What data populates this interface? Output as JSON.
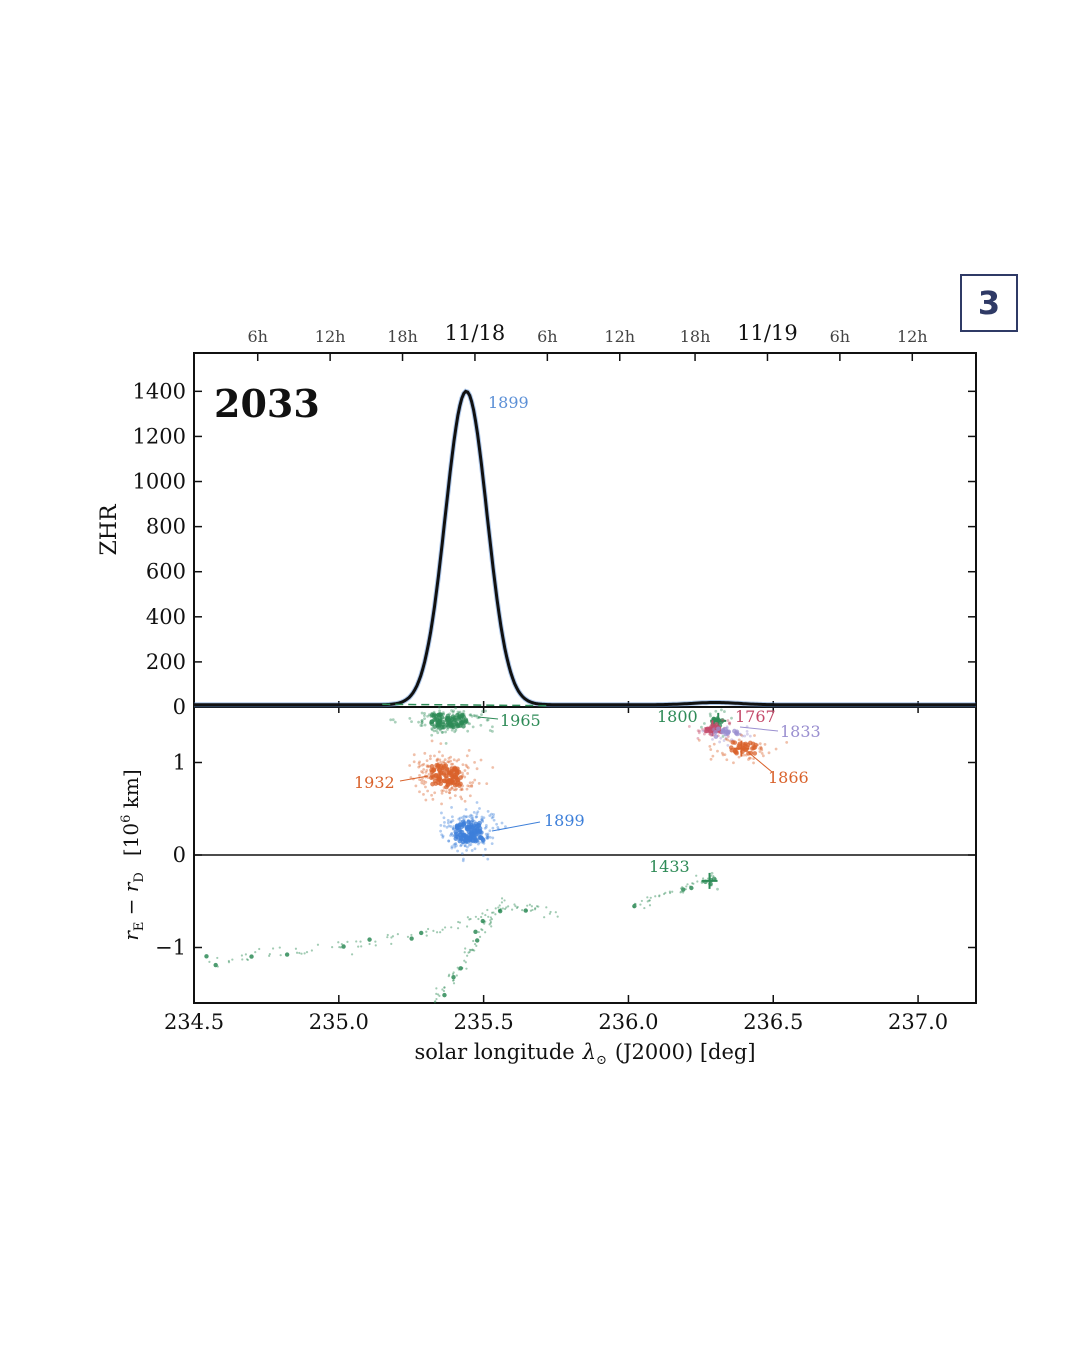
{
  "page_badge": "3",
  "chart_data": [
    {
      "type": "line",
      "panel": "top",
      "title": "2033",
      "ylabel": "ZHR",
      "ylim": [
        0,
        1400
      ],
      "yticks": [
        "0",
        "200",
        "400",
        "600",
        "800",
        "1000",
        "1200",
        "1400"
      ],
      "xlim": [
        234.5,
        237.2
      ],
      "top_axis_ticks": [
        {
          "label": "6h",
          "x": 234.72
        },
        {
          "label": "12h",
          "x": 234.97
        },
        {
          "label": "18h",
          "x": 235.22
        },
        {
          "label": "11/18",
          "x": 235.47,
          "major": true
        },
        {
          "label": "6h",
          "x": 235.72
        },
        {
          "label": "12h",
          "x": 235.97
        },
        {
          "label": "18h",
          "x": 236.23
        },
        {
          "label": "11/19",
          "x": 236.48,
          "major": true
        },
        {
          "label": "6h",
          "x": 236.73
        },
        {
          "label": "12h",
          "x": 236.98
        }
      ],
      "series": [
        {
          "color": "#111111",
          "peak": {
            "x": 235.44,
            "y": 1400,
            "label": "1899",
            "label_color": "#5b8fd6"
          },
          "background_level": 10,
          "secondary_bump": {
            "x": 236.3,
            "y": 10
          },
          "peak_width_sigma": 0.072
        }
      ]
    },
    {
      "type": "scatter",
      "panel": "bottom",
      "xlabel": "solar longitude λ⊙ (J2000) [deg]",
      "ylabel": "r_E − r_D [10^6 km]",
      "xlim": [
        234.5,
        237.2
      ],
      "ylim": [
        -1.6,
        1.6
      ],
      "xticks": [
        "234.5",
        "235.0",
        "235.5",
        "236.0",
        "236.5",
        "237.0"
      ],
      "yticks": [
        "−1",
        "0",
        "1"
      ],
      "clusters": [
        {
          "label": "1965",
          "color": "#2e8b57",
          "x": 235.38,
          "y": 1.45,
          "sx": 0.06,
          "sy": 0.07,
          "n": 170
        },
        {
          "label": "1932",
          "color": "#d9622b",
          "x": 235.37,
          "y": 0.85,
          "sx": 0.055,
          "sy": 0.12,
          "n": 220
        },
        {
          "label": "1899",
          "color": "#3d7fd9",
          "x": 235.45,
          "y": 0.25,
          "sx": 0.05,
          "sy": 0.11,
          "n": 230
        },
        {
          "label": "1800",
          "color": "#2e8b57",
          "x": 236.31,
          "y": 1.45,
          "sx": 0.02,
          "sy": 0.06,
          "n": 25
        },
        {
          "label": "1767",
          "color": "#c44a6a",
          "x": 236.29,
          "y": 1.37,
          "sx": 0.03,
          "sy": 0.05,
          "n": 40
        },
        {
          "label": "1833",
          "color": "#9a8fd0",
          "x": 236.34,
          "y": 1.32,
          "sx": 0.04,
          "sy": 0.05,
          "n": 40
        },
        {
          "label": "1866",
          "color": "#d9622b",
          "x": 236.39,
          "y": 1.15,
          "sx": 0.05,
          "sy": 0.07,
          "n": 70
        },
        {
          "label": "1433",
          "color": "#2e8b57",
          "x": 236.28,
          "y": -0.28,
          "sx": 0.02,
          "sy": 0.04,
          "n": 10
        }
      ],
      "trails": [
        {
          "color": "#2e8b57",
          "points": [
            [
              234.52,
              -1.18
            ],
            [
              234.7,
              -1.1
            ],
            [
              234.9,
              -1.03
            ],
            [
              235.1,
              -0.95
            ],
            [
              235.3,
              -0.85
            ],
            [
              235.45,
              -0.72
            ],
            [
              235.55,
              -0.6
            ],
            [
              235.65,
              -0.55
            ],
            [
              235.75,
              -0.62
            ]
          ]
        },
        {
          "color": "#2e8b57",
          "points": [
            [
              235.32,
              -1.6
            ],
            [
              235.38,
              -1.4
            ],
            [
              235.43,
              -1.15
            ],
            [
              235.47,
              -0.95
            ],
            [
              235.52,
              -0.7
            ],
            [
              235.57,
              -0.5
            ]
          ]
        },
        {
          "color": "#2e8b57",
          "points": [
            [
              236.0,
              -0.6
            ],
            [
              236.1,
              -0.45
            ],
            [
              236.2,
              -0.35
            ],
            [
              236.3,
              -0.2
            ]
          ]
        }
      ]
    }
  ],
  "labels": {
    "ann_1899_top": "1899",
    "ann_1965": "1965",
    "ann_1932": "1932",
    "ann_1899_bottom": "1899",
    "ann_1800": "1800",
    "ann_1767": "1767",
    "ann_1833": "1833",
    "ann_1866": "1866",
    "ann_1433": "1433",
    "title": "2033",
    "zhr": "ZHR",
    "xlabel_main": "solar longitude",
    "xlabel_sym": "λ",
    "xlabel_sub": "⊙",
    "xlabel_tail": "(J2000) [deg]",
    "ylabel_r": "r",
    "ylabel_E": "E",
    "ylabel_minus": " − r",
    "ylabel_D": "D",
    "ylabel_units_pre": "[10",
    "ylabel_exp": "6",
    "ylabel_units_post": " km]"
  }
}
